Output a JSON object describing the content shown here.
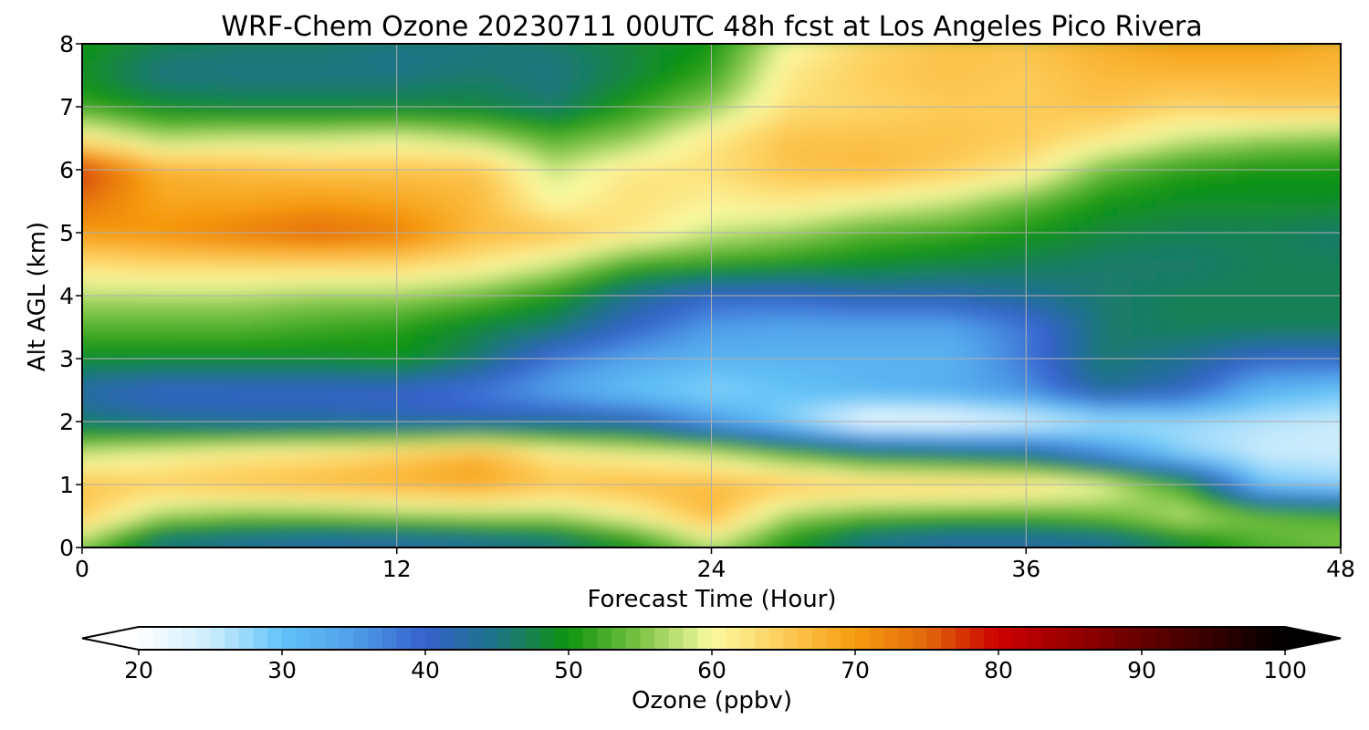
{
  "chart_data": {
    "type": "heatmap",
    "title": "WRF-Chem Ozone  20230711 00UTC 48h fcst at Los Angeles Pico Rivera",
    "xlabel": "Forecast Time (Hour)",
    "ylabel": "Alt AGL (km)",
    "xlim": [
      0,
      48
    ],
    "ylim": [
      0,
      8
    ],
    "x_ticks": [
      0,
      12,
      24,
      36,
      48
    ],
    "y_ticks": [
      0,
      1,
      2,
      3,
      4,
      5,
      6,
      7,
      8
    ],
    "grid": true,
    "x": [
      0,
      3,
      6,
      9,
      12,
      15,
      18,
      21,
      24,
      27,
      30,
      33,
      36,
      39,
      42,
      45,
      48
    ],
    "y": [
      0.1,
      0.5,
      1.0,
      1.5,
      2.0,
      2.5,
      3.0,
      3.5,
      4.0,
      4.5,
      5.0,
      5.5,
      6.0,
      6.5,
      7.0,
      7.5,
      8.0
    ],
    "values": [
      [
        56,
        45,
        43,
        42,
        42,
        43,
        45,
        50,
        58,
        50,
        44,
        42,
        42,
        43,
        48,
        53,
        55
      ],
      [
        65,
        56,
        54,
        54,
        55,
        56,
        56,
        60,
        67,
        56,
        53,
        52,
        52,
        54,
        58,
        55,
        53
      ],
      [
        66,
        65,
        66,
        67,
        68,
        69,
        66,
        67,
        67,
        66,
        65,
        65,
        64,
        60,
        52,
        30,
        28
      ],
      [
        58,
        60,
        62,
        63,
        65,
        68,
        62,
        60,
        58,
        53,
        48,
        46,
        44,
        36,
        28,
        25,
        25
      ],
      [
        46,
        44,
        43,
        43,
        42,
        42,
        43,
        42,
        35,
        28,
        21,
        21,
        23,
        26,
        27,
        26,
        25
      ],
      [
        42,
        40,
        40,
        40,
        40,
        38,
        34,
        30,
        28,
        30,
        32,
        33,
        36,
        44,
        41,
        32,
        30
      ],
      [
        49,
        49,
        49,
        49,
        50,
        46,
        38,
        34,
        32,
        32,
        32,
        32,
        38,
        46,
        44,
        40,
        40
      ],
      [
        53,
        53,
        53,
        52,
        51,
        48,
        46,
        40,
        35,
        34,
        34,
        34,
        38,
        46,
        47,
        47,
        47
      ],
      [
        57,
        57,
        57,
        56,
        56,
        54,
        50,
        44,
        40,
        40,
        42,
        42,
        44,
        46,
        47,
        47,
        47
      ],
      [
        63,
        64,
        64,
        64,
        64,
        62,
        58,
        52,
        51,
        50,
        49,
        48,
        47,
        46,
        46,
        47,
        47
      ],
      [
        70,
        71,
        73,
        75,
        73,
        67,
        66,
        62,
        58,
        56,
        53,
        52,
        50,
        48,
        47,
        47,
        46
      ],
      [
        74,
        69,
        69,
        70,
        69,
        67,
        60,
        63,
        61,
        62,
        60,
        58,
        54,
        50,
        49,
        49,
        49
      ],
      [
        78,
        68,
        67,
        66,
        66,
        66,
        58,
        62,
        63,
        66,
        67,
        65,
        62,
        54,
        51,
        50,
        50
      ],
      [
        62,
        57,
        58,
        58,
        59,
        57,
        53,
        56,
        62,
        66,
        66,
        66,
        65,
        62,
        58,
        56,
        55
      ],
      [
        52,
        49,
        48,
        48,
        48,
        48,
        46,
        51,
        56,
        63,
        64,
        65,
        65,
        66,
        64,
        65,
        65
      ],
      [
        49,
        45,
        45,
        45,
        45,
        46,
        45,
        48,
        52,
        62,
        65,
        66,
        65,
        67,
        67,
        67,
        67
      ],
      [
        50,
        47,
        46,
        46,
        45,
        45,
        46,
        48,
        50,
        60,
        64,
        66,
        66,
        68,
        70,
        70,
        68
      ]
    ],
    "colorbar": {
      "label": "Ozone  (ppbv)",
      "min": 20,
      "max": 100,
      "ticks": [
        20,
        30,
        40,
        50,
        60,
        70,
        80,
        90,
        100
      ],
      "extend": "both",
      "stops": [
        {
          "v": 20,
          "c": "#ffffff"
        },
        {
          "v": 25,
          "c": "#cdecfc"
        },
        {
          "v": 30,
          "c": "#62c3f7"
        },
        {
          "v": 35,
          "c": "#4f9ee8"
        },
        {
          "v": 40,
          "c": "#3561cc"
        },
        {
          "v": 45,
          "c": "#1d7485"
        },
        {
          "v": 50,
          "c": "#0f9410"
        },
        {
          "v": 55,
          "c": "#7cc444"
        },
        {
          "v": 60,
          "c": "#fbfba4"
        },
        {
          "v": 65,
          "c": "#fdcc58"
        },
        {
          "v": 70,
          "c": "#f69c10"
        },
        {
          "v": 75,
          "c": "#e2680a"
        },
        {
          "v": 80,
          "c": "#cc0000"
        },
        {
          "v": 85,
          "c": "#990000"
        },
        {
          "v": 90,
          "c": "#660000"
        },
        {
          "v": 95,
          "c": "#330000"
        },
        {
          "v": 100,
          "c": "#000000"
        }
      ]
    }
  }
}
